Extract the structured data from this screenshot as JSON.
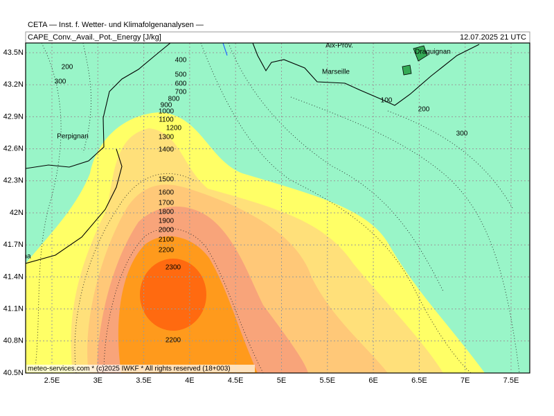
{
  "header": {
    "title": "CETA — Inst. f. Wetter- und Klimafolgenanalysen —",
    "field": "CAPE_Conv._Avail._Pot._Energy [J/kg]",
    "valid_time": "12.07.2025 21 UTC"
  },
  "axes": {
    "lat_labels": [
      "43.5N",
      "43.2N",
      "42.9N",
      "42.6N",
      "42.3N",
      "42N",
      "41.7N",
      "41.4N",
      "41.1N",
      "40.8N",
      "40.5N"
    ],
    "lon_labels": [
      "2.5E",
      "3E",
      "3.5E",
      "4E",
      "4.5E",
      "5E",
      "5.5E",
      "6E",
      "6.5E",
      "7E",
      "7.5E"
    ]
  },
  "places": [
    "Aix-Prov.",
    "Marseille",
    "Draguignan",
    "Perpignan",
    "Barcelona"
  ],
  "contour_labels": [
    "400",
    "500",
    "600",
    "700",
    "800",
    "900",
    "1000",
    "1100",
    "1200",
    "1300",
    "1400",
    "1500",
    "1600",
    "1700",
    "1800",
    "1900",
    "2000",
    "2100",
    "2200",
    "2300",
    "2200",
    "200",
    "300",
    "100",
    "200",
    "300"
  ],
  "footer": "meteo-services.com * (c)2025 IWKF * All rights reserved (18+003)"
}
